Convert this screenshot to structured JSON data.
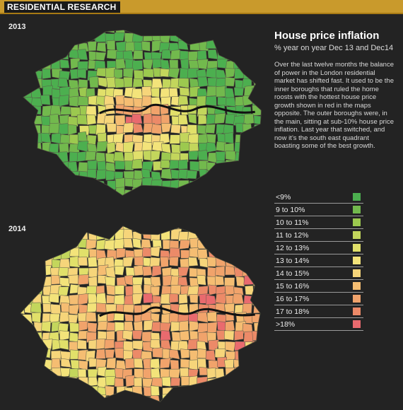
{
  "header": {
    "label": "RESIDENTIAL RESEARCH"
  },
  "title": "House price inflation",
  "subtitle": "% year on year Dec 13 and Dec14",
  "body": "Over the last twelve months the balance of power in the London residential market has shifted fast. It used to be the inner boroughs that ruled the home roosts with the hottest house price growth shown in red in the maps opposite. The outer boroughs were, in the main, sitting at sub-10% house price inflation. Last year that switched, and now it’s the south east quadrant boasting some of the best growth.",
  "maps": [
    {
      "year": "2013",
      "dominant": "low"
    },
    {
      "year": "2014",
      "dominant": "high"
    }
  ],
  "legend": [
    {
      "label": "<9%",
      "color": "#4caf4f"
    },
    {
      "label": "9 to 10%",
      "color": "#72b94d"
    },
    {
      "label": "10 to 11%",
      "color": "#9cc94f"
    },
    {
      "label": "11 to 12%",
      "color": "#c3d65c"
    },
    {
      "label": "12 to 13%",
      "color": "#e1e06a"
    },
    {
      "label": "13 to 14%",
      "color": "#f3e37a"
    },
    {
      "label": "14 to 15%",
      "color": "#f6d57a"
    },
    {
      "label": "15 to 16%",
      "color": "#f5bd72"
    },
    {
      "label": "16 to 17%",
      "color": "#f1a36b"
    },
    {
      "label": "17 to 18%",
      "color": "#ec8a68"
    },
    {
      "label": ">18%",
      "color": "#e96a6e"
    }
  ]
}
